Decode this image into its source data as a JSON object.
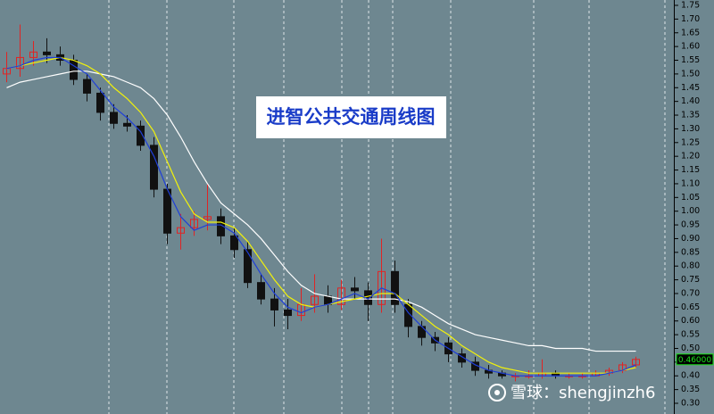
{
  "chart_data": {
    "type": "candlestick",
    "title": "进智公共交通周线图",
    "watermark": "雪球：shengjinzh6",
    "up_color": "#e02424",
    "down_color": "#111111",
    "open": [
      1.5,
      1.52,
      1.56,
      1.58,
      1.57,
      1.55,
      1.48,
      1.43,
      1.36,
      1.32,
      1.31,
      1.24,
      1.08,
      0.92,
      0.94,
      0.97,
      0.98,
      0.91,
      0.86,
      0.74,
      0.68,
      0.64,
      0.62,
      0.66,
      0.69,
      0.66,
      0.72,
      0.71,
      0.66,
      0.78,
      0.66,
      0.58,
      0.54,
      0.52,
      0.48,
      0.45,
      0.42,
      0.41,
      0.4,
      0.4,
      0.4,
      0.41,
      0.4,
      0.4,
      0.4,
      0.41,
      0.42,
      0.44
    ],
    "high": [
      1.58,
      1.68,
      1.62,
      1.63,
      1.6,
      1.57,
      1.5,
      1.45,
      1.39,
      1.35,
      1.33,
      1.27,
      1.1,
      0.99,
      1.0,
      1.1,
      1.01,
      0.94,
      0.89,
      0.77,
      0.72,
      0.68,
      0.72,
      0.77,
      0.73,
      0.75,
      0.76,
      0.74,
      0.9,
      0.82,
      0.68,
      0.6,
      0.56,
      0.54,
      0.5,
      0.47,
      0.44,
      0.42,
      0.41,
      0.42,
      0.46,
      0.42,
      0.41,
      0.41,
      0.42,
      0.43,
      0.45,
      0.47
    ],
    "low": [
      1.47,
      1.49,
      1.53,
      1.54,
      1.53,
      1.46,
      1.4,
      1.33,
      1.3,
      1.29,
      1.22,
      1.05,
      0.88,
      0.86,
      0.91,
      0.93,
      0.88,
      0.83,
      0.72,
      0.66,
      0.58,
      0.57,
      0.6,
      0.63,
      0.63,
      0.64,
      0.68,
      0.6,
      0.63,
      0.63,
      0.54,
      0.51,
      0.49,
      0.45,
      0.43,
      0.4,
      0.39,
      0.39,
      0.38,
      0.39,
      0.39,
      0.39,
      0.39,
      0.39,
      0.4,
      0.4,
      0.41,
      0.43
    ],
    "close": [
      1.52,
      1.56,
      1.58,
      1.57,
      1.55,
      1.48,
      1.43,
      1.36,
      1.32,
      1.31,
      1.24,
      1.08,
      0.92,
      0.94,
      0.97,
      0.98,
      0.91,
      0.86,
      0.74,
      0.68,
      0.64,
      0.62,
      0.66,
      0.69,
      0.66,
      0.72,
      0.71,
      0.66,
      0.78,
      0.66,
      0.58,
      0.54,
      0.52,
      0.48,
      0.45,
      0.42,
      0.41,
      0.4,
      0.4,
      0.4,
      0.41,
      0.4,
      0.4,
      0.4,
      0.41,
      0.42,
      0.44,
      0.46
    ],
    "lines": [
      {
        "color": "#ffffff",
        "values": [
          1.45,
          1.47,
          1.48,
          1.49,
          1.5,
          1.51,
          1.51,
          1.5,
          1.49,
          1.47,
          1.45,
          1.41,
          1.35,
          1.27,
          1.18,
          1.1,
          1.03,
          0.99,
          0.95,
          0.9,
          0.84,
          0.78,
          0.73,
          0.7,
          0.69,
          0.68,
          0.68,
          0.68,
          0.68,
          0.68,
          0.67,
          0.65,
          0.62,
          0.59,
          0.57,
          0.55,
          0.54,
          0.53,
          0.52,
          0.51,
          0.51,
          0.5,
          0.5,
          0.5,
          0.49,
          0.49,
          0.49,
          0.49
        ]
      },
      {
        "color": "#f2f20a",
        "values": [
          1.52,
          1.53,
          1.54,
          1.55,
          1.56,
          1.55,
          1.53,
          1.5,
          1.45,
          1.41,
          1.36,
          1.29,
          1.18,
          1.07,
          0.99,
          0.96,
          0.96,
          0.94,
          0.89,
          0.82,
          0.75,
          0.69,
          0.66,
          0.65,
          0.66,
          0.67,
          0.68,
          0.69,
          0.7,
          0.7,
          0.66,
          0.62,
          0.58,
          0.55,
          0.51,
          0.48,
          0.45,
          0.43,
          0.42,
          0.41,
          0.41,
          0.41,
          0.41,
          0.41,
          0.41,
          0.41,
          0.42,
          0.43
        ]
      },
      {
        "color": "#1f3fd8",
        "values": [
          1.52,
          1.53,
          1.55,
          1.56,
          1.56,
          1.53,
          1.5,
          1.44,
          1.38,
          1.34,
          1.29,
          1.2,
          1.08,
          0.98,
          0.93,
          0.95,
          0.95,
          0.92,
          0.85,
          0.77,
          0.7,
          0.65,
          0.63,
          0.65,
          0.66,
          0.68,
          0.7,
          0.68,
          0.72,
          0.7,
          0.63,
          0.58,
          0.53,
          0.5,
          0.47,
          0.44,
          0.42,
          0.41,
          0.4,
          0.4,
          0.4,
          0.4,
          0.4,
          0.4,
          0.4,
          0.41,
          0.42,
          0.44
        ]
      }
    ],
    "last_price": {
      "value": 0.46,
      "label": "0.46000"
    },
    "ylim": [
      0.261,
      1.7695
    ],
    "yticks": [
      {
        "value": 0.3,
        "label": "0.30"
      },
      {
        "value": 0.35,
        "label": "0.35"
      },
      {
        "value": 0.4,
        "label": "0.40"
      },
      {
        "value": 0.45,
        "label": "0.45"
      },
      {
        "value": 0.5,
        "label": "0.50"
      },
      {
        "value": 0.55,
        "label": "0.55"
      },
      {
        "value": 0.6,
        "label": "0.60"
      },
      {
        "value": 0.65,
        "label": "0.65"
      },
      {
        "value": 0.7,
        "label": "0.70"
      },
      {
        "value": 0.75,
        "label": "0.75"
      },
      {
        "value": 0.8,
        "label": "0.80"
      },
      {
        "value": 0.85,
        "label": "0.85"
      },
      {
        "value": 0.9,
        "label": "0.90"
      },
      {
        "value": 0.95,
        "label": "0.95"
      },
      {
        "value": 1.0,
        "label": "1.00"
      },
      {
        "value": 1.05,
        "label": "1.05"
      },
      {
        "value": 1.1,
        "label": "1.10"
      },
      {
        "value": 1.15,
        "label": "1.15"
      },
      {
        "value": 1.2,
        "label": "1.20"
      },
      {
        "value": 1.25,
        "label": "1.25"
      },
      {
        "value": 1.3,
        "label": "1.30"
      },
      {
        "value": 1.35,
        "label": "1.35"
      },
      {
        "value": 1.4,
        "label": "1.40"
      },
      {
        "value": 1.45,
        "label": "1.45"
      },
      {
        "value": 1.5,
        "label": "1.50"
      },
      {
        "value": 1.55,
        "label": "1.55"
      },
      {
        "value": 1.6,
        "label": "1.60"
      },
      {
        "value": 1.65,
        "label": "1.65"
      },
      {
        "value": 1.7,
        "label": "1.70"
      },
      {
        "value": 1.75,
        "label": "1.75"
      }
    ]
  }
}
